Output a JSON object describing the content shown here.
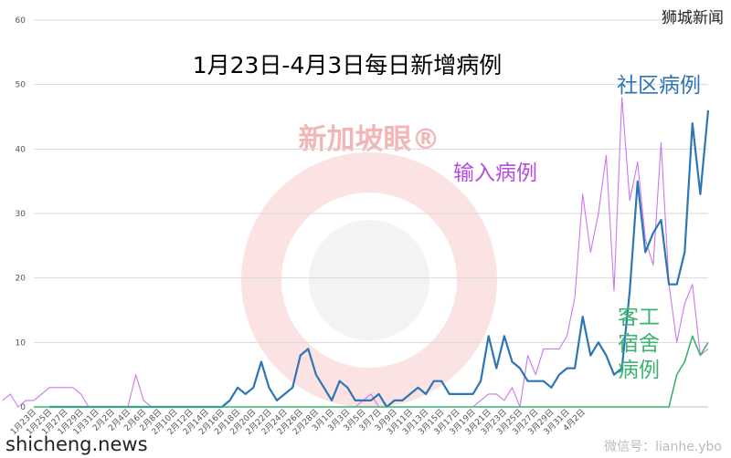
{
  "chart_data": {
    "type": "line",
    "title": "1月23日-4月3日每日新增病例",
    "ylim": [
      0,
      60
    ],
    "yticks": [
      0,
      10,
      20,
      30,
      40,
      50,
      60
    ],
    "xtick_labels": [
      "1月23日",
      "1月25日",
      "1月27日",
      "1月29日",
      "1月31日",
      "2月2日",
      "2月4日",
      "2月6日",
      "2月8日",
      "2月10日",
      "2月12日",
      "2月14日",
      "2月16日",
      "2月18日",
      "2月20日",
      "2月22日",
      "2月24日",
      "2月26日",
      "2月28日",
      "3月1日",
      "3月3日",
      "3月5日",
      "3月7日",
      "3月9日",
      "3月11日",
      "3月13日",
      "3月15日",
      "3月17日",
      "3月19日",
      "3月21日",
      "3月23日",
      "3月25日",
      "3月27日",
      "3月29日",
      "3月31日",
      "4月2日"
    ],
    "grid": true,
    "series": [
      {
        "name": "社区病例",
        "color": "#2e75b6",
        "values": [
          0,
          0,
          0,
          0,
          0,
          0,
          0,
          0,
          0,
          0,
          0,
          0,
          0,
          0,
          0,
          0,
          0,
          0,
          0,
          0,
          0,
          0,
          0,
          1,
          3,
          2,
          3,
          7,
          3,
          1,
          2,
          3,
          8,
          9,
          5,
          3,
          1,
          4,
          3,
          1,
          1,
          1,
          2,
          0,
          1,
          1,
          2,
          3,
          2,
          4,
          4,
          2,
          2,
          2,
          2,
          4,
          11,
          6,
          11,
          7,
          6,
          4,
          4,
          4,
          3,
          5,
          6,
          6,
          14,
          8,
          10,
          8,
          5,
          6,
          18,
          35,
          24,
          27,
          29,
          19,
          19,
          24,
          44,
          33,
          46
        ]
      },
      {
        "name": "输入病例",
        "color": "#cc77ee",
        "values": [
          1,
          2,
          0,
          1,
          1,
          2,
          3,
          3,
          3,
          3,
          2,
          0,
          0,
          0,
          0,
          0,
          0,
          5,
          1,
          0,
          0,
          0,
          0,
          0,
          0,
          0,
          0,
          0,
          0,
          0,
          0,
          0,
          0,
          0,
          0,
          0,
          0,
          0,
          0,
          0,
          0,
          0,
          0,
          0,
          0,
          0,
          1,
          2,
          0,
          0,
          0,
          0,
          0,
          0,
          0,
          0,
          0,
          0,
          0,
          0,
          0,
          1,
          2,
          2,
          1,
          3,
          0,
          8,
          5,
          9,
          9,
          9,
          11,
          17,
          33,
          24,
          30,
          39,
          18,
          48,
          32,
          38,
          26,
          22,
          41,
          19,
          10,
          16,
          19,
          8,
          9
        ]
      },
      {
        "name": "客工宿舍病例",
        "color": "#3cb371",
        "values": [
          0,
          0,
          0,
          0,
          0,
          0,
          0,
          0,
          0,
          0,
          0,
          0,
          0,
          0,
          0,
          0,
          0,
          0,
          0,
          0,
          0,
          0,
          0,
          0,
          0,
          0,
          0,
          0,
          0,
          0,
          0,
          0,
          0,
          0,
          0,
          0,
          0,
          0,
          0,
          0,
          0,
          0,
          0,
          0,
          0,
          0,
          0,
          0,
          0,
          0,
          0,
          0,
          0,
          0,
          0,
          0,
          0,
          0,
          0,
          0,
          0,
          0,
          0,
          0,
          0,
          0,
          0,
          0,
          0,
          0,
          0,
          0,
          0,
          0,
          0,
          0,
          0,
          0,
          0,
          0,
          0,
          0,
          5,
          7,
          11,
          8,
          10
        ]
      }
    ],
    "series_labels": [
      {
        "series": "社区病例",
        "text": "社区病例"
      },
      {
        "series": "输入病例",
        "text": "输入病例"
      },
      {
        "series": "客工宿舍病例",
        "lines": [
          "客工",
          "宿舍",
          "病例"
        ]
      }
    ]
  },
  "watermarks": {
    "brand": "狮城新闻",
    "site": "shicheng.news",
    "wechat": "微信号：lianhe.ybo",
    "logo_text": "新加坡眼®"
  }
}
